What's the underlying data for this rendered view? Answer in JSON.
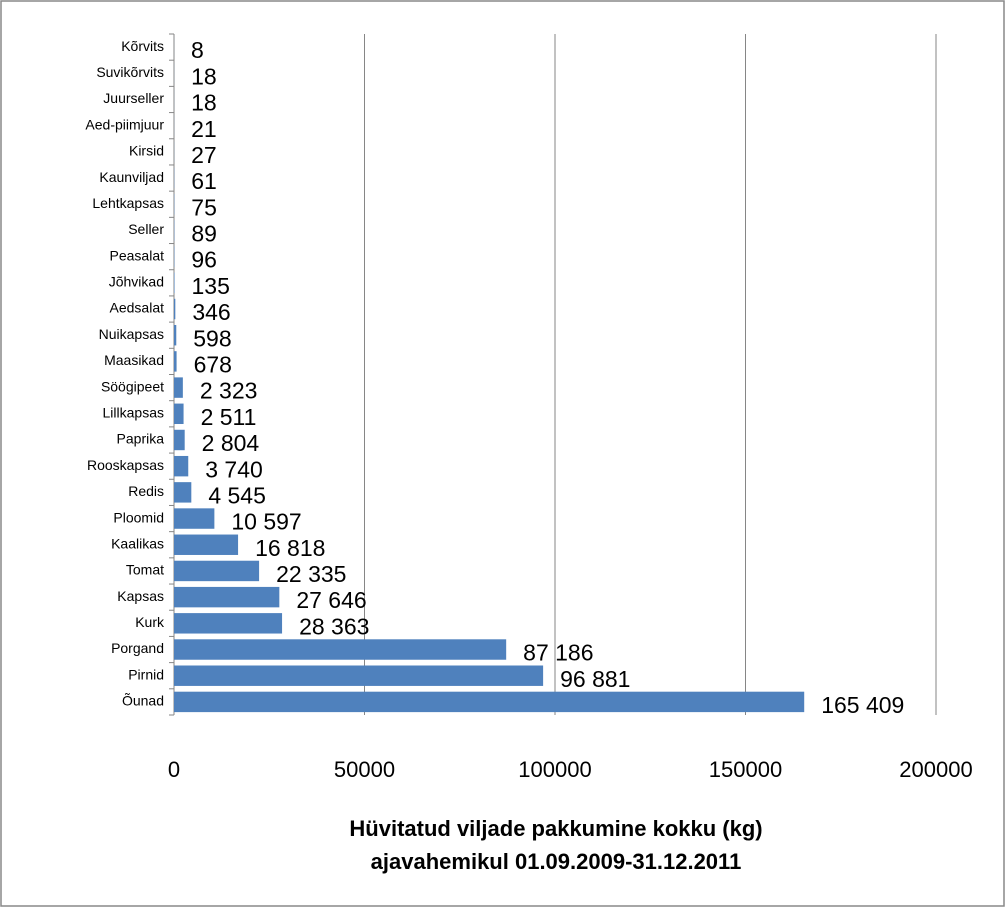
{
  "chart_data": {
    "type": "barh",
    "title": [
      "Hüvitatud viljade pakkumine kokku (kg)",
      "ajavahemikul 01.09.2009-31.12.2011"
    ],
    "categories": [
      "Kõrvits",
      "Suvikõrvits",
      "Juurseller",
      "Aed-piimjuur",
      "Kirsid",
      "Kaunviljad",
      "Lehtkapsas",
      "Seller",
      "Peasalat",
      "Jõhvikad",
      "Aedsalat",
      "Nuikapsas",
      "Maasikad",
      "Söögipeet",
      "Lillkapsas",
      "Paprika",
      "Rooskapsas",
      "Redis",
      "Ploomid",
      "Kaalikas",
      "Tomat",
      "Kapsas",
      "Kurk",
      "Porgand",
      "Pirnid",
      "Õunad"
    ],
    "values": [
      8,
      18,
      18,
      21,
      27,
      61,
      75,
      89,
      96,
      135,
      346,
      598,
      678,
      2323,
      2511,
      2804,
      3740,
      4545,
      10597,
      16818,
      22335,
      27646,
      28363,
      87186,
      96881,
      165409
    ],
    "value_labels": [
      "8",
      "18",
      "18",
      "21",
      "27",
      "61",
      "75",
      "89",
      "96",
      "135",
      "346",
      "598",
      "678",
      "2 323",
      "2 511",
      "2 804",
      "3 740",
      "4 545",
      "10 597",
      "16 818",
      "22 335",
      "27 646",
      "28 363",
      "87 186",
      "96 881",
      "165 409"
    ],
    "color": "#4f81bd",
    "xlim": [
      0,
      200000
    ],
    "xticks": [
      0,
      50000,
      100000,
      150000,
      200000
    ],
    "grid": true
  }
}
